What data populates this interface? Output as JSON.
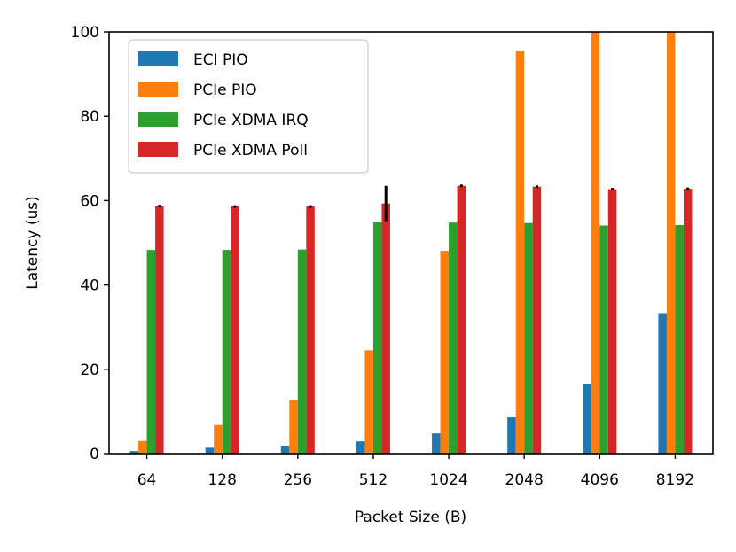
{
  "chart_data": {
    "type": "bar",
    "title": "",
    "xlabel": "Packet Size (B)",
    "ylabel": "Latency (us)",
    "categories": [
      "64",
      "128",
      "256",
      "512",
      "1024",
      "2048",
      "4096",
      "8192"
    ],
    "ylim": [
      0,
      100
    ],
    "yticks": [
      "0",
      "20",
      "40",
      "60",
      "80",
      "100"
    ],
    "grid": false,
    "legend_position": "top-left",
    "series": [
      {
        "name": "ECI PIO",
        "color": "#1f77b4",
        "values": [
          0.6,
          1.4,
          1.9,
          2.9,
          4.8,
          8.6,
          16.6,
          33.3
        ]
      },
      {
        "name": "PCIe PIO",
        "color": "#ff7f0e",
        "values": [
          3.0,
          6.8,
          12.6,
          24.5,
          48.1,
          95.5,
          100,
          100
        ]
      },
      {
        "name": "PCIe XDMA IRQ",
        "color": "#2ca02c",
        "values": [
          48.3,
          48.3,
          48.4,
          55.0,
          54.8,
          54.7,
          54.1,
          54.2
        ]
      },
      {
        "name": "PCIe XDMA Poll",
        "color": "#d62728",
        "values": [
          58.7,
          58.6,
          58.6,
          59.3,
          63.5,
          63.3,
          62.7,
          62.8
        ],
        "errors": [
          0.3,
          0.3,
          0.3,
          4.2,
          0.3,
          0.3,
          0.3,
          0.3
        ]
      }
    ]
  }
}
